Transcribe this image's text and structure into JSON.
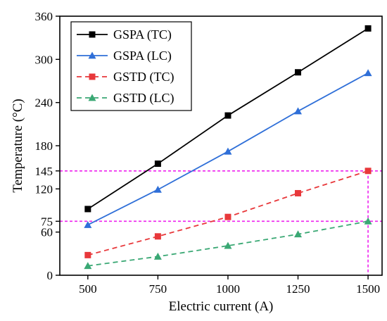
{
  "chart_data": {
    "type": "line",
    "xlabel": "Electric current (A)",
    "ylabel": "Temperature (°C)",
    "xlim": [
      400,
      1550
    ],
    "ylim": [
      0,
      360
    ],
    "x_ticks": [
      500,
      750,
      1000,
      1250,
      1500
    ],
    "y_ticks": [
      0,
      60,
      75,
      120,
      145,
      180,
      240,
      300,
      360
    ],
    "x": [
      500,
      750,
      1000,
      1250,
      1500
    ],
    "legend_position": "top-left",
    "series": [
      {
        "name": "GSPA (TC)",
        "values": [
          92,
          155,
          222,
          282,
          343
        ],
        "color": "#000000",
        "dash": "solid",
        "marker": "square"
      },
      {
        "name": "GSPA (LC)",
        "values": [
          70,
          119,
          172,
          228,
          281
        ],
        "color": "#2f6fd8",
        "dash": "solid",
        "marker": "triangle"
      },
      {
        "name": "GSTD (TC)",
        "values": [
          28,
          54,
          81,
          114,
          145
        ],
        "color": "#e8383b",
        "dash": "dashed",
        "marker": "square"
      },
      {
        "name": "GSTD (LC)",
        "values": [
          13,
          26,
          41,
          57,
          75
        ],
        "color": "#3aa874",
        "dash": "dashed",
        "marker": "triangle"
      }
    ],
    "reference_lines": {
      "color": "#ee22ee",
      "horizontal": [
        145,
        75
      ],
      "vertical": [
        1500
      ]
    }
  }
}
